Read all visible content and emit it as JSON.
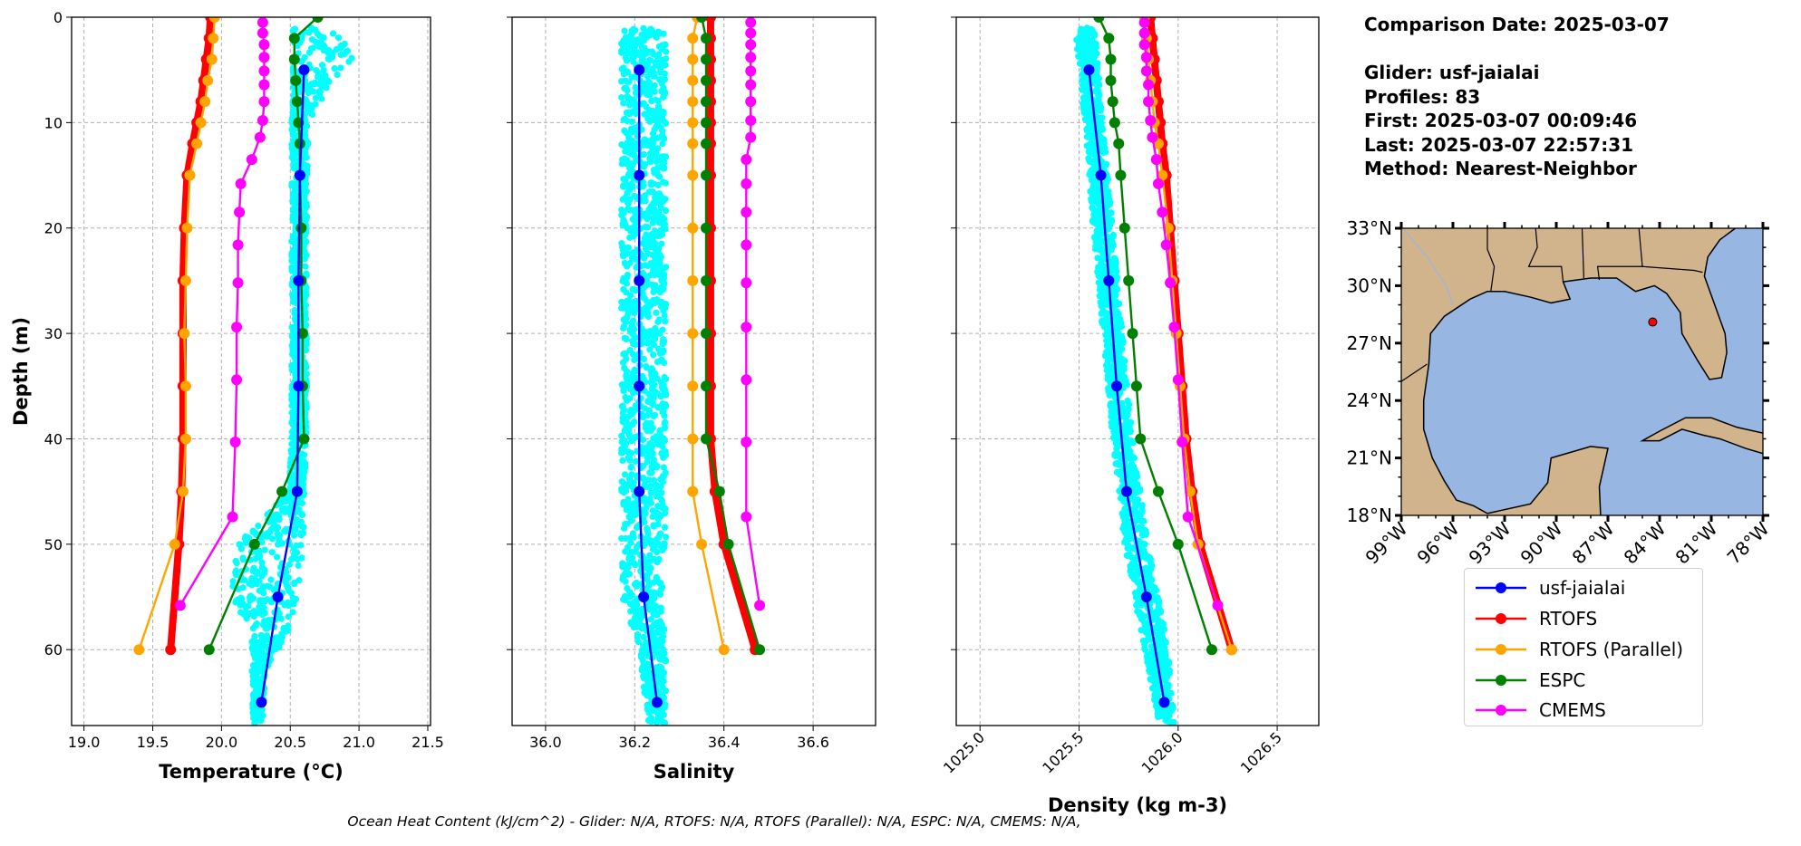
{
  "info": {
    "comparison_date": "Comparison Date: 2025-03-07",
    "glider": "Glider: usf-jaialai",
    "profiles": "Profiles: 83",
    "first": "First: 2025-03-07 00:09:46",
    "last": "Last: 2025-03-07 22:57:31",
    "method": "Method: Nearest-Neighbor"
  },
  "footer": "Ocean Heat Content (kJ/cm^2) - Glider: N/A,  RTOFS: N/A,  RTOFS (Parallel): N/A,  ESPC: N/A,  CMEMS: N/A,",
  "legend": [
    {
      "name": "usf-jaialai",
      "color": "#0000ff"
    },
    {
      "name": "RTOFS",
      "color": "#ff0000"
    },
    {
      "name": "RTOFS (Parallel)",
      "color": "#ffa500"
    },
    {
      "name": "ESPC",
      "color": "#008000"
    },
    {
      "name": "CMEMS",
      "color": "#ff00ff"
    }
  ],
  "colors": {
    "glider_scatter": "#00ffff",
    "land": "#d2b48c",
    "water": "#97b6e1",
    "glider_location": "#ff0000"
  },
  "chart_data": [
    {
      "type": "line",
      "id": "temperature",
      "xlabel": "Temperature (°C)",
      "ylabel": "Depth (m)",
      "xlim": [
        18.91,
        21.52
      ],
      "ylim": [
        67.2,
        0
      ],
      "xticks": [
        19.0,
        19.5,
        20.0,
        20.5,
        21.0,
        21.5
      ],
      "xtick_labels": [
        "19.0",
        "19.5",
        "20.0",
        "20.5",
        "21.0",
        "21.5"
      ],
      "yticks": [
        0,
        10,
        20,
        30,
        40,
        50,
        60
      ],
      "ytick_labels": [
        "0",
        "10",
        "20",
        "30",
        "40",
        "50",
        "60"
      ],
      "grid": true,
      "scatter_envelope": {
        "depth": [
          1,
          4,
          8,
          10,
          20,
          30,
          40,
          45,
          50,
          55,
          58,
          62,
          67
        ],
        "min": [
          20.52,
          20.52,
          20.52,
          20.51,
          20.51,
          20.51,
          20.51,
          20.49,
          20.12,
          20.05,
          20.22,
          20.22,
          20.23
        ],
        "max": [
          21.05,
          20.95,
          20.72,
          20.63,
          20.62,
          20.62,
          20.62,
          20.6,
          20.6,
          20.55,
          20.5,
          20.32,
          20.3
        ]
      },
      "series": [
        {
          "name": "usf-jaialai",
          "depth": [
            5,
            15,
            25,
            35,
            45,
            55,
            65
          ],
          "values": [
            20.6,
            20.57,
            20.56,
            20.56,
            20.55,
            20.41,
            20.29
          ]
        },
        {
          "name": "RTOFS",
          "depth": [
            0,
            2,
            4,
            6,
            8,
            10,
            12,
            15,
            20,
            25,
            30,
            35,
            40,
            45,
            50,
            60
          ],
          "values": [
            19.92,
            19.91,
            19.89,
            19.87,
            19.85,
            19.82,
            19.79,
            19.75,
            19.73,
            19.72,
            19.72,
            19.72,
            19.72,
            19.71,
            19.69,
            19.63
          ]
        },
        {
          "name": "RTOFS (Parallel)",
          "depth": [
            0,
            2,
            4,
            6,
            8,
            10,
            12,
            15,
            20,
            25,
            30,
            35,
            40,
            45,
            50,
            60
          ],
          "values": [
            19.95,
            19.94,
            19.93,
            19.9,
            19.88,
            19.85,
            19.82,
            19.77,
            19.75,
            19.74,
            19.73,
            19.74,
            19.74,
            19.72,
            19.66,
            19.4
          ]
        },
        {
          "name": "ESPC",
          "depth": [
            0,
            2,
            4,
            6,
            8,
            10,
            12,
            15,
            20,
            25,
            30,
            35,
            40,
            45,
            50,
            60
          ],
          "values": [
            20.7,
            20.53,
            20.53,
            20.54,
            20.55,
            20.56,
            20.57,
            20.57,
            20.58,
            20.58,
            20.59,
            20.59,
            20.6,
            20.44,
            20.24,
            19.91
          ]
        },
        {
          "name": "CMEMS",
          "depth": [
            0.5,
            1.5,
            2.6,
            3.8,
            5.1,
            6.4,
            8.0,
            9.8,
            11.4,
            13.5,
            15.8,
            18.5,
            21.6,
            25.2,
            29.4,
            34.4,
            40.3,
            47.4,
            55.8
          ],
          "values": [
            20.3,
            20.3,
            20.31,
            20.31,
            20.31,
            20.31,
            20.31,
            20.3,
            20.28,
            20.22,
            20.14,
            20.13,
            20.12,
            20.12,
            20.11,
            20.11,
            20.1,
            20.08,
            19.7
          ]
        }
      ]
    },
    {
      "type": "line",
      "id": "salinity",
      "xlabel": "Salinity",
      "xlim": [
        35.925,
        36.74
      ],
      "ylim": [
        67.2,
        0
      ],
      "xticks": [
        36.0,
        36.2,
        36.4,
        36.6
      ],
      "xtick_labels": [
        "36.0",
        "36.2",
        "36.4",
        "36.6"
      ],
      "yticks": [
        0,
        10,
        20,
        30,
        40,
        50,
        60
      ],
      "grid": true,
      "scatter_envelope": {
        "depth": [
          1,
          10,
          30,
          50,
          55,
          60,
          67
        ],
        "min": [
          36.17,
          36.17,
          36.17,
          36.17,
          36.17,
          36.21,
          36.23
        ],
        "max": [
          36.27,
          36.27,
          36.27,
          36.27,
          36.26,
          36.27,
          36.27
        ]
      },
      "series": [
        {
          "name": "usf-jaialai",
          "depth": [
            5,
            15,
            25,
            35,
            45,
            55,
            65
          ],
          "values": [
            36.21,
            36.21,
            36.21,
            36.21,
            36.21,
            36.22,
            36.25
          ]
        },
        {
          "name": "RTOFS",
          "depth": [
            0,
            2,
            4,
            6,
            8,
            10,
            12,
            15,
            20,
            25,
            30,
            35,
            40,
            45,
            50,
            60
          ],
          "values": [
            36.37,
            36.37,
            36.37,
            36.37,
            36.37,
            36.37,
            36.37,
            36.37,
            36.37,
            36.37,
            36.37,
            36.37,
            36.37,
            36.38,
            36.4,
            36.47
          ]
        },
        {
          "name": "RTOFS (Parallel)",
          "depth": [
            0,
            2,
            4,
            6,
            8,
            10,
            12,
            15,
            20,
            25,
            30,
            35,
            40,
            45,
            50,
            60
          ],
          "values": [
            36.34,
            36.33,
            36.33,
            36.33,
            36.33,
            36.33,
            36.33,
            36.33,
            36.33,
            36.33,
            36.33,
            36.33,
            36.33,
            36.33,
            36.35,
            36.4
          ]
        },
        {
          "name": "ESPC",
          "depth": [
            0,
            2,
            4,
            6,
            8,
            10,
            12,
            15,
            20,
            25,
            30,
            35,
            40,
            45,
            50,
            60
          ],
          "values": [
            36.35,
            36.36,
            36.36,
            36.36,
            36.36,
            36.36,
            36.36,
            36.36,
            36.36,
            36.36,
            36.36,
            36.36,
            36.36,
            36.39,
            36.41,
            36.48
          ]
        },
        {
          "name": "CMEMS",
          "depth": [
            0.5,
            1.5,
            2.6,
            3.8,
            5.1,
            6.4,
            8.0,
            9.8,
            11.4,
            13.5,
            15.8,
            18.5,
            21.6,
            25.2,
            29.4,
            34.4,
            40.3,
            47.4,
            55.8
          ],
          "values": [
            36.46,
            36.46,
            36.46,
            36.46,
            36.46,
            36.46,
            36.46,
            36.46,
            36.46,
            36.45,
            36.45,
            36.45,
            36.45,
            36.45,
            36.45,
            36.45,
            36.45,
            36.45,
            36.48
          ]
        }
      ]
    },
    {
      "type": "line",
      "id": "density",
      "xlabel": "Density (kg m-3)",
      "xlim": [
        1024.88,
        1026.71
      ],
      "ylim": [
        67.2,
        0
      ],
      "xticks": [
        1025.0,
        1025.5,
        1026.0,
        1026.5
      ],
      "xtick_labels": [
        "1025.0",
        "1025.5",
        "1026.0",
        "1026.5"
      ],
      "yticks": [
        0,
        10,
        20,
        30,
        40,
        50,
        60
      ],
      "grid": true,
      "scatter_envelope": {
        "depth": [
          1,
          5,
          10,
          20,
          30,
          40,
          50,
          60,
          67
        ],
        "min": [
          1025.48,
          1025.5,
          1025.53,
          1025.57,
          1025.62,
          1025.67,
          1025.73,
          1025.83,
          1025.9
        ],
        "max": [
          1025.58,
          1025.6,
          1025.62,
          1025.67,
          1025.72,
          1025.77,
          1025.85,
          1025.95,
          1025.98
        ]
      },
      "series": [
        {
          "name": "usf-jaialai",
          "depth": [
            5,
            15,
            25,
            35,
            45,
            55,
            65
          ],
          "values": [
            1025.55,
            1025.61,
            1025.65,
            1025.69,
            1025.74,
            1025.84,
            1025.93
          ]
        },
        {
          "name": "RTOFS",
          "depth": [
            0,
            2,
            4,
            6,
            8,
            10,
            12,
            15,
            20,
            25,
            30,
            35,
            40,
            45,
            50,
            60
          ],
          "values": [
            1025.86,
            1025.87,
            1025.88,
            1025.89,
            1025.9,
            1025.91,
            1025.92,
            1025.94,
            1025.96,
            1025.98,
            1026.0,
            1026.02,
            1026.04,
            1026.07,
            1026.11,
            1026.27
          ]
        },
        {
          "name": "RTOFS (Parallel)",
          "depth": [
            0,
            2,
            4,
            6,
            8,
            10,
            12,
            15,
            20,
            25,
            30,
            35,
            40,
            45,
            50,
            60
          ],
          "values": [
            1025.83,
            1025.84,
            1025.85,
            1025.86,
            1025.87,
            1025.88,
            1025.9,
            1025.92,
            1025.95,
            1025.97,
            1025.99,
            1026.01,
            1026.03,
            1026.06,
            1026.1,
            1026.27
          ]
        },
        {
          "name": "ESPC",
          "depth": [
            0,
            2,
            4,
            6,
            8,
            10,
            12,
            15,
            20,
            25,
            30,
            35,
            40,
            45,
            50,
            60
          ],
          "values": [
            1025.6,
            1025.65,
            1025.66,
            1025.66,
            1025.67,
            1025.68,
            1025.7,
            1025.71,
            1025.73,
            1025.75,
            1025.77,
            1025.79,
            1025.81,
            1025.9,
            1026.0,
            1026.17
          ]
        },
        {
          "name": "CMEMS",
          "depth": [
            0.5,
            1.5,
            2.6,
            3.8,
            5.1,
            6.4,
            8.0,
            9.8,
            11.4,
            13.5,
            15.8,
            18.5,
            21.6,
            25.2,
            29.4,
            34.4,
            40.3,
            47.4,
            55.8
          ],
          "values": [
            1025.83,
            1025.83,
            1025.83,
            1025.84,
            1025.84,
            1025.85,
            1025.85,
            1025.86,
            1025.87,
            1025.89,
            1025.9,
            1025.92,
            1025.94,
            1025.96,
            1025.98,
            1026.0,
            1026.02,
            1026.05,
            1026.2
          ]
        }
      ]
    },
    {
      "type": "map",
      "id": "location-map",
      "lon_range": [
        -99,
        -78
      ],
      "lat_range": [
        18,
        33
      ],
      "lon_tick_labels": [
        "99°W",
        "96°W",
        "93°W",
        "90°W",
        "87°W",
        "84°W",
        "81°W",
        "78°W"
      ],
      "lat_tick_labels": [
        "18°N",
        "21°N",
        "24°N",
        "27°N",
        "30°N",
        "33°N"
      ],
      "glider_location": {
        "lon": -84.4,
        "lat": 28.1
      }
    }
  ]
}
